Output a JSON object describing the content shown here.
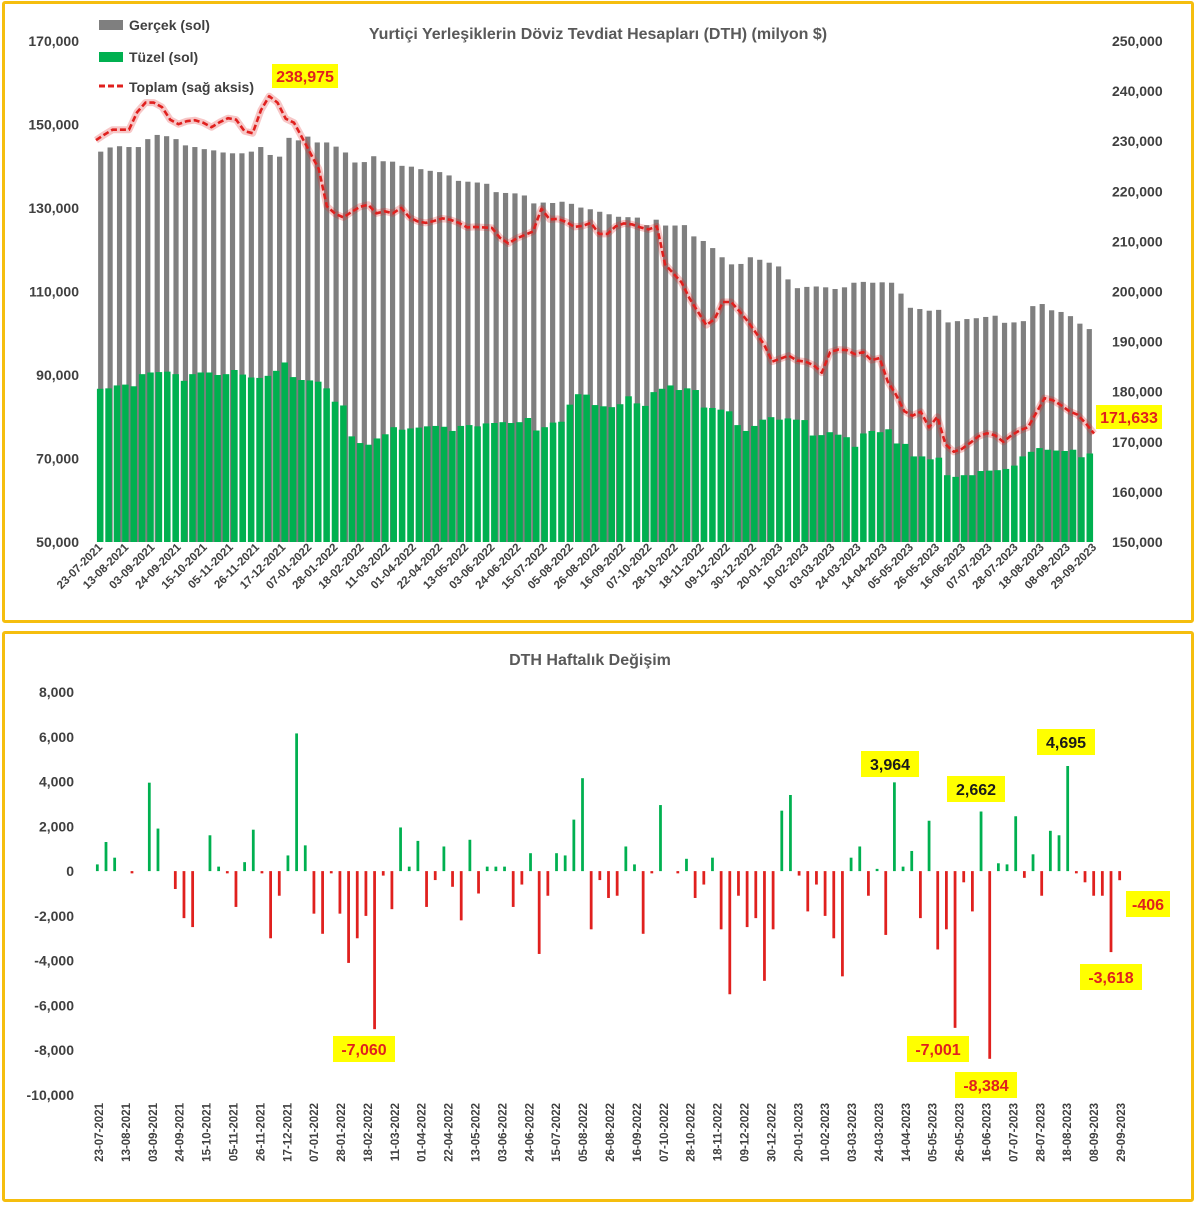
{
  "colors": {
    "gercek": "#7F7F7F",
    "tuzel": "#00B050",
    "toplam": "#E0201E",
    "pos": "#00B050",
    "neg": "#E0201E",
    "highlight": "#FFFF00",
    "frame": "#F5BE0E"
  },
  "chart_data": [
    {
      "type": "bar",
      "title": "Yurtiçi Yerleşiklerin Döviz Tevdiat Hesapları (DTH) (milyon $)",
      "legend": {
        "placement": "top-left",
        "items": [
          "Gerçek (sol)",
          "Tüzel (sol)",
          "Toplam (sağ aksis)"
        ]
      },
      "ylim": [
        50000,
        170000
      ],
      "yticks": [
        "170,000",
        "150,000",
        "130,000",
        "110,000",
        "90,000",
        "70,000",
        "50,000"
      ],
      "y2lim": [
        150000,
        250000
      ],
      "y2ticks": [
        "250,000",
        "240,000",
        "230,000",
        "220,000",
        "210,000",
        "200,000",
        "190,000",
        "180,000",
        "170,000",
        "160,000",
        "150,000"
      ],
      "xticklabels": [
        "23-07-2021",
        "13-08-2021",
        "03-09-2021",
        "24-09-2021",
        "15-10-2021",
        "05-11-2021",
        "26-11-2021",
        "17-12-2021",
        "07-01-2022",
        "28-01-2022",
        "18-02-2022",
        "11-03-2022",
        "01-04-2022",
        "22-04-2022",
        "13-05-2022",
        "03-06-2022",
        "24-06-2022",
        "15-07-2022",
        "05-08-2022",
        "26-08-2022",
        "16-09-2022",
        "07-10-2022",
        "28-10-2022",
        "18-11-2022",
        "09-12-2022",
        "30-12-2022",
        "20-01-2023",
        "10-02-2023",
        "03-03-2023",
        "24-03-2023",
        "14-04-2023",
        "05-05-2023",
        "26-05-2023",
        "16-06-2023",
        "07-07-2023",
        "28-07-2023",
        "18-08-2023",
        "08-09-2023",
        "29-09-2023"
      ],
      "series": [
        {
          "name": "Gerçek (sol)",
          "values": [
            143500,
            144500,
            144800,
            144600,
            144600,
            146500,
            147500,
            147200,
            146500,
            145000,
            144600,
            144100,
            143800,
            143300,
            143100,
            143100,
            143500,
            144600,
            142700,
            142300,
            146800,
            146200,
            147100,
            145700,
            145700,
            144700,
            143300,
            140900,
            141000,
            142400,
            141200,
            141100,
            140100,
            139900,
            139300,
            138900,
            138600,
            137800,
            136500,
            136300,
            136100,
            135800,
            133800,
            133600,
            133500,
            133000,
            131100,
            131300,
            131200,
            131500,
            131000,
            130100,
            129700,
            129100,
            128500,
            127900,
            127800,
            127700,
            125900,
            127200,
            125800,
            125800,
            125900,
            123200,
            122100,
            120400,
            118200,
            116500,
            116600,
            118200,
            117600,
            116900,
            116000,
            112900,
            110800,
            111100,
            111200,
            111000,
            110600,
            111000,
            112100,
            112300,
            112100,
            112200,
            112100,
            109500,
            106100,
            105800,
            105400,
            105600,
            102600,
            102900,
            103400,
            103600,
            103900,
            104200,
            102500,
            102600,
            102900,
            106500,
            107000,
            105500,
            105100,
            104100,
            102300,
            101000
          ]
        },
        {
          "name": "Tüzel (sol)",
          "values": [
            86700,
            86800,
            87500,
            87700,
            87300,
            90200,
            90600,
            90700,
            90800,
            90200,
            88600,
            90200,
            90600,
            90600,
            90000,
            90200,
            91200,
            90100,
            89400,
            89300,
            89800,
            91000,
            93000,
            89500,
            88800,
            88700,
            88400,
            86800,
            83600,
            82700,
            75300,
            73700,
            73300,
            74800,
            75800,
            77500,
            76900,
            77200,
            77400,
            77700,
            77800,
            77600,
            76600,
            77800,
            78000,
            77700,
            78400,
            78500,
            78700,
            78500,
            78700,
            79700,
            76700,
            77500,
            78600,
            78800,
            82900,
            85400,
            85300,
            82800,
            82500,
            82300,
            83000,
            84900,
            83200,
            82600,
            85900,
            86700,
            87500,
            86400,
            86800,
            86400,
            82200,
            82100,
            81700,
            81300,
            78000,
            76600,
            77800,
            79300,
            79900,
            79300,
            79600,
            79300,
            79200,
            75500,
            75600,
            76300,
            75700,
            75100,
            72800,
            76000,
            76600,
            76300,
            77000,
            73600,
            73500,
            70500,
            70500,
            69800,
            70200,
            66000,
            65600,
            66000,
            66000,
            67000,
            67100,
            67200,
            67500,
            68300,
            70500,
            71600,
            72500,
            72100,
            71900,
            71800,
            72100,
            70300,
            71200
          ]
        },
        {
          "name": "Toplam (sağ aksis)",
          "values": [
            230200,
            231300,
            232300,
            232300,
            232300,
            235800,
            237700,
            237700,
            236800,
            234300,
            233400,
            234000,
            234200,
            233700,
            232800,
            233800,
            234600,
            234300,
            232000,
            231600,
            236200,
            238975,
            237700,
            234500,
            233700,
            230700,
            227600,
            224500,
            217000,
            215500,
            214800,
            215900,
            216900,
            217300,
            215600,
            216000,
            215600,
            216700,
            214800,
            214000,
            213700,
            214100,
            214600,
            214300,
            213700,
            212800,
            212900,
            212800,
            212700,
            210700,
            209600,
            210600,
            211300,
            212000,
            216500,
            214400,
            214500,
            213900,
            212900,
            213100,
            213700,
            211500,
            211500,
            213000,
            213600,
            213400,
            212800,
            212400,
            213000,
            205400,
            203600,
            201800,
            198500,
            195900,
            193300,
            194500,
            197900,
            197900,
            196100,
            194100,
            191800,
            189400,
            186000,
            186600,
            187200,
            186200,
            186000,
            185300,
            183800,
            187900,
            188400,
            188300,
            187500,
            187900,
            186300,
            186700,
            182000,
            179400,
            176100,
            175200,
            176000,
            172900,
            175000,
            169500,
            168000,
            168600,
            169800,
            171100,
            171700,
            171300,
            170000,
            171300,
            172300,
            172900,
            175800,
            178700,
            178300,
            177300,
            176100,
            175400,
            173700,
            171633
          ]
        }
      ]
    },
    {
      "type": "bar",
      "title": "DTH Haftalık Değişim",
      "ylim": [
        -10000,
        8000
      ],
      "yticks": [
        "8,000",
        "6,000",
        "4,000",
        "2,000",
        "0",
        "-2,000",
        "-4,000",
        "-6,000",
        "-8,000",
        "-10,000"
      ],
      "xticklabels": [
        "23-07-2021",
        "13-08-2021",
        "03-09-2021",
        "24-09-2021",
        "15-10-2021",
        "05-11-2021",
        "26-11-2021",
        "17-12-2021",
        "07-01-2022",
        "28-01-2022",
        "18-02-2022",
        "11-03-2022",
        "01-04-2022",
        "22-04-2022",
        "13-05-2022",
        "03-06-2022",
        "24-06-2022",
        "15-07-2022",
        "05-08-2022",
        "26-08-2022",
        "16-09-2022",
        "07-10-2022",
        "28-10-2022",
        "18-11-2022",
        "09-12-2022",
        "30-12-2022",
        "20-01-2023",
        "10-02-2023",
        "03-03-2023",
        "24-03-2023",
        "14-04-2023",
        "05-05-2023",
        "26-05-2023",
        "16-06-2023",
        "07-07-2023",
        "28-07-2023",
        "18-08-2023",
        "08-09-2023",
        "29-09-2023"
      ],
      "values": [
        300,
        1300,
        600,
        0,
        -100,
        0,
        3950,
        1900,
        0,
        -800,
        -2100,
        -2500,
        0,
        1600,
        200,
        -100,
        -1600,
        400,
        1850,
        -100,
        -3000,
        -1100,
        700,
        6150,
        1150,
        -1900,
        -2800,
        -100,
        -1900,
        -4100,
        -3000,
        -2000,
        -7060,
        -200,
        -1700,
        1950,
        200,
        1350,
        -1600,
        -400,
        1100,
        -700,
        -2200,
        1400,
        -1000,
        200,
        200,
        200,
        -1600,
        -600,
        800,
        -3700,
        -1100,
        800,
        700,
        2300,
        4150,
        -2600,
        -400,
        -1200,
        -1100,
        1100,
        300,
        -2800,
        -100,
        2950,
        0,
        -100,
        550,
        -1200,
        -600,
        600,
        -2600,
        -5500,
        -1100,
        -2500,
        -2100,
        -4900,
        -2600,
        2700,
        3400,
        -200,
        -1800,
        -600,
        -2000,
        -3000,
        -4700,
        600,
        1100,
        -1100,
        100,
        -2850,
        3964,
        200,
        900,
        -2100,
        2250,
        -3500,
        -2600,
        -7001,
        -500,
        -1800,
        2662,
        -8384,
        350,
        300,
        2450,
        -300,
        750,
        -1100,
        1800,
        1600,
        4695,
        -100,
        -500,
        -1100,
        -1100,
        -3618,
        -406
      ],
      "callouts": [
        "-7,060",
        "3,964",
        "2,662",
        "4,695",
        "-7,001",
        "-8,384",
        "-3,618",
        "-406"
      ]
    }
  ],
  "top_callouts": [
    "238,975",
    "171,633"
  ]
}
